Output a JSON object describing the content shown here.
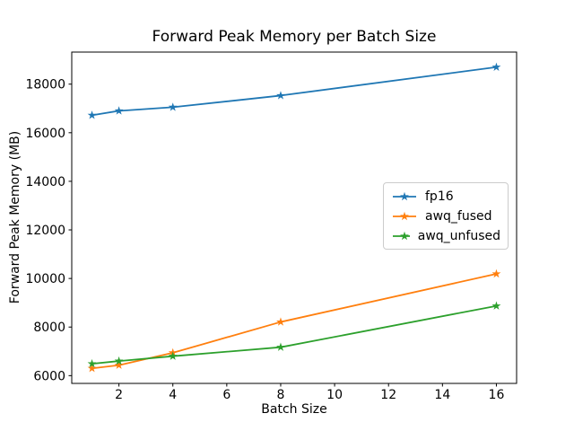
{
  "chart_data": {
    "type": "line",
    "title": "Forward Peak Memory per Batch Size",
    "xlabel": "Batch Size",
    "ylabel": "Forward Peak Memory (MB)",
    "x": [
      1,
      2,
      4,
      8,
      16
    ],
    "series": [
      {
        "name": "fp16",
        "color": "#1f77b4",
        "values": [
          16720,
          16900,
          17050,
          17530,
          18700
        ]
      },
      {
        "name": "awq_fused",
        "color": "#ff7f0e",
        "values": [
          6300,
          6430,
          6940,
          8210,
          10190
        ]
      },
      {
        "name": "awq_unfused",
        "color": "#2ca02c",
        "values": [
          6490,
          6600,
          6800,
          7170,
          8870
        ]
      }
    ],
    "marker": "star",
    "xlim": [
      0.25,
      16.75
    ],
    "ylim": [
      5680,
      19320
    ],
    "x_ticks": [
      "2",
      "4",
      "6",
      "8",
      "10",
      "12",
      "14",
      "16"
    ],
    "x_tick_values": [
      2,
      4,
      6,
      8,
      10,
      12,
      14,
      16
    ],
    "y_ticks": [
      "6000",
      "8000",
      "10000",
      "12000",
      "14000",
      "16000",
      "18000"
    ],
    "y_tick_values": [
      6000,
      8000,
      10000,
      12000,
      14000,
      16000,
      18000
    ],
    "grid": false,
    "legend_position": "center-right",
    "axis_color": "#000000",
    "background_color": "#ffffff"
  }
}
